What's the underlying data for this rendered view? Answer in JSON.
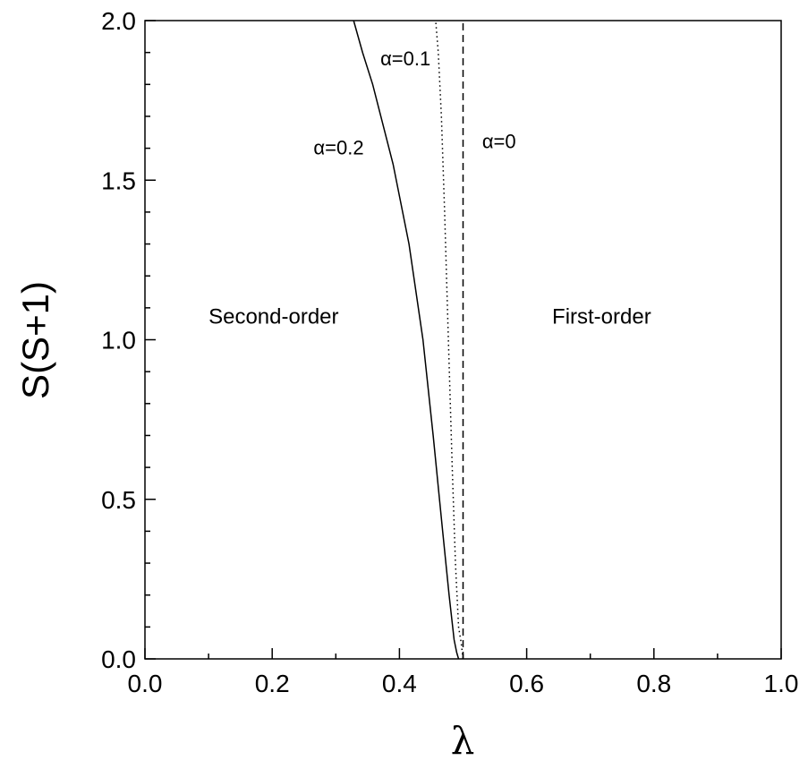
{
  "chart_data": {
    "type": "line",
    "title": "",
    "xlabel": "λ",
    "ylabel": "S(S+1)",
    "xlim": [
      0.0,
      1.0
    ],
    "ylim": [
      0.0,
      2.0
    ],
    "xticks": [
      "0.0",
      "0.2",
      "0.4",
      "0.6",
      "0.8",
      "1.0"
    ],
    "yticks": [
      "0.0",
      "0.5",
      "1.0",
      "1.5",
      "2.0"
    ],
    "grid": false,
    "series": [
      {
        "name": "α=0",
        "style": "dashed",
        "color": "#000000",
        "x": [
          0.5,
          0.5
        ],
        "y": [
          0.0,
          2.0
        ]
      },
      {
        "name": "α=0.1",
        "style": "dotted",
        "color": "#000000",
        "x": [
          0.5,
          0.497,
          0.493,
          0.488,
          0.483,
          0.477,
          0.471,
          0.466,
          0.461,
          0.457
        ],
        "y": [
          0.0,
          0.05,
          0.1,
          0.3,
          0.6,
          1.0,
          1.4,
          1.7,
          1.9,
          2.0
        ]
      },
      {
        "name": "α=0.2",
        "style": "solid",
        "color": "#000000",
        "x": [
          0.493,
          0.49,
          0.486,
          0.478,
          0.468,
          0.453,
          0.437,
          0.415,
          0.39,
          0.358,
          0.342,
          0.328
        ],
        "y": [
          0.0,
          0.02,
          0.06,
          0.2,
          0.4,
          0.7,
          1.0,
          1.3,
          1.55,
          1.8,
          1.9,
          2.0
        ]
      }
    ],
    "annotations": [
      {
        "text": "α=0.1",
        "x": 0.37,
        "y": 1.86
      },
      {
        "text": "α=0.2",
        "x": 0.265,
        "y": 1.58
      },
      {
        "text": "α=0",
        "x": 0.53,
        "y": 1.6
      },
      {
        "text": "Second-order",
        "x": 0.1,
        "y": 1.05
      },
      {
        "text": "First-order",
        "x": 0.64,
        "y": 1.05
      }
    ]
  }
}
